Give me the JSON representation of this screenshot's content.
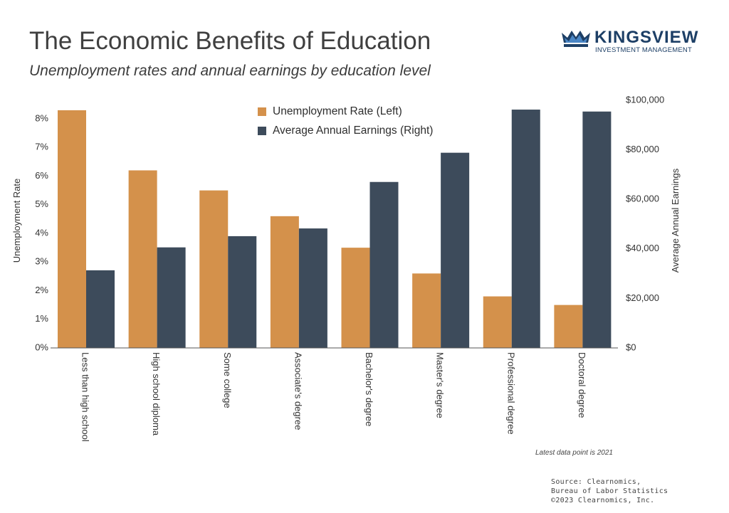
{
  "header": {
    "title": "The Economic Benefits of Education",
    "subtitle": "Unemployment rates and annual earnings by education level"
  },
  "logo": {
    "name": "KINGSVIEW",
    "tagline": "INVESTMENT MANAGEMENT",
    "icon": "crown-icon",
    "color": "#1d3f66"
  },
  "chart_data": {
    "type": "bar",
    "categories": [
      "Less than high school",
      "High school diploma",
      "Some college",
      "Associate's degree",
      "Bachelor's degree",
      "Master's degree",
      "Professional degree",
      "Doctoral degree"
    ],
    "series": [
      {
        "name": "Unemployment Rate (Left)",
        "axis": "left",
        "color": "#d4914b",
        "values": [
          8.3,
          6.2,
          5.5,
          4.6,
          3.5,
          2.6,
          1.8,
          1.5
        ]
      },
      {
        "name": "Average Annual Earnings (Right)",
        "axis": "right",
        "color": "#3d4b5b",
        "values": [
          31356,
          40612,
          45136,
          48256,
          67028,
          78832,
          96252,
          95472
        ]
      }
    ],
    "y_left": {
      "label": "Unemployment Rate",
      "ylim": [
        0,
        8.5
      ],
      "ticks": [
        0,
        1,
        2,
        3,
        4,
        5,
        6,
        7,
        8
      ],
      "tick_labels": [
        "0%",
        "1%",
        "2%",
        "3%",
        "4%",
        "5%",
        "6%",
        "7%",
        "8%"
      ]
    },
    "y_right": {
      "label": "Average Annual Earnings",
      "ylim": [
        0,
        100000
      ],
      "ticks": [
        0,
        20000,
        40000,
        60000,
        80000,
        100000
      ],
      "tick_labels": [
        "$0",
        "$20,000",
        "$40,000",
        "$60,000",
        "$80,000",
        "$100,000"
      ]
    },
    "grid": false,
    "legend_position": "top-center"
  },
  "footer": {
    "note": "Latest data point is 2021",
    "source_lines": [
      "Source: Clearnomics,",
      "Bureau of Labor Statistics",
      "©2023 Clearnomics, Inc."
    ]
  }
}
